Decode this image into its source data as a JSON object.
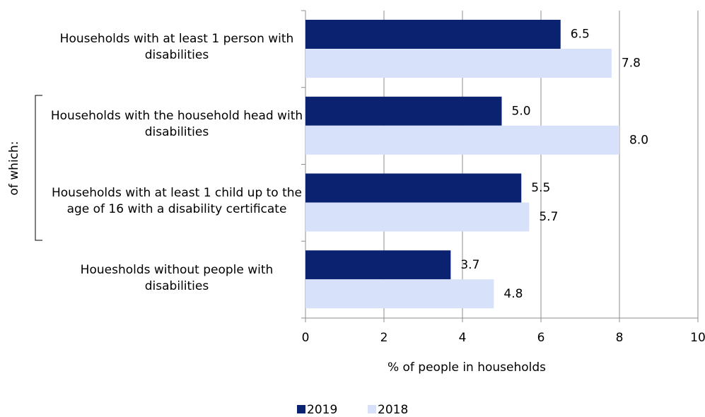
{
  "chart_data": {
    "type": "bar",
    "orientation": "horizontal",
    "categories": [
      "Households with at least 1 person with disabilities",
      "Households with the household head with disabilities",
      "Households with at least 1 child up to the age of 16 with a disability certificate",
      "Houesholds without people with disabilities"
    ],
    "series": [
      {
        "name": "2019",
        "color": "#0b2271",
        "values": [
          6.5,
          5.0,
          5.5,
          3.7
        ],
        "value_labels": [
          "6.5",
          "5.0",
          "5.5",
          "3.7"
        ]
      },
      {
        "name": "2018",
        "color": "#d7e1fa",
        "values": [
          7.8,
          8.0,
          5.7,
          4.8
        ],
        "value_labels": [
          "7.8",
          "8.0",
          "5.7",
          "4.8"
        ]
      }
    ],
    "xlabel": "% of people in households",
    "annotation": "of which:",
    "xlim": [
      0,
      10
    ],
    "xticks": [
      0,
      2,
      4,
      6,
      8,
      10
    ],
    "grid": true,
    "legend": "bottom"
  }
}
